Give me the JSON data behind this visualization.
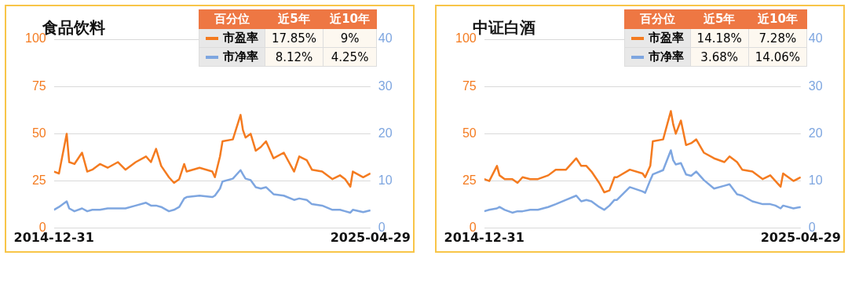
{
  "chart_data": [
    {
      "type": "line",
      "title": "食品饮料",
      "x": [
        "2014-12-31",
        "2015-03",
        "2015-06",
        "2015-07",
        "2015-09",
        "2015-12",
        "2016-02",
        "2016-04",
        "2016-07",
        "2016-10",
        "2017-02",
        "2017-05",
        "2017-09",
        "2018-01",
        "2018-03",
        "2018-05",
        "2018-07",
        "2018-10",
        "2018-12",
        "2019-02",
        "2019-04",
        "2019-05",
        "2019-10",
        "2020-03",
        "2020-04",
        "2020-06",
        "2020-07",
        "2020-11",
        "2021-02",
        "2021-03",
        "2021-04",
        "2021-06",
        "2021-08",
        "2021-10",
        "2021-12",
        "2022-03",
        "2022-07",
        "2022-11",
        "2023-01",
        "2023-04",
        "2023-06",
        "2023-10",
        "2024-02",
        "2024-05",
        "2024-07",
        "2024-09",
        "2024-10",
        "2025-02",
        "2025-04-29"
      ],
      "series": [
        {
          "name": "市盈率",
          "color": "#f47b20",
          "values": [
            30,
            29,
            50,
            35,
            34,
            40,
            30,
            31,
            34,
            32,
            35,
            31,
            35,
            38,
            35,
            42,
            33,
            27,
            24,
            26,
            34,
            30,
            32,
            30,
            27,
            38,
            46,
            47,
            60,
            52,
            48,
            50,
            41,
            43,
            46,
            37,
            40,
            30,
            38,
            36,
            31,
            30,
            26,
            28,
            26,
            22,
            30,
            27,
            29
          ]
        },
        {
          "name": "市净率",
          "color": "#7ea6e0",
          "axis": "y2",
          "values": [
            3.9,
            4.5,
            5.7,
            4.2,
            3.6,
            4.2,
            3.6,
            3.9,
            3.9,
            4.2,
            4.2,
            4.2,
            4.8,
            5.4,
            4.8,
            4.8,
            4.5,
            3.6,
            3.9,
            4.5,
            6.3,
            6.6,
            6.9,
            6.6,
            6.9,
            8.4,
            9.9,
            10.5,
            12.3,
            11.4,
            10.5,
            10.2,
            8.7,
            8.4,
            8.7,
            7.2,
            6.9,
            6.0,
            6.3,
            6.0,
            5.1,
            4.8,
            3.9,
            3.9,
            3.6,
            3.3,
            3.9,
            3.4,
            3.8
          ]
        }
      ],
      "xlim": [
        "2014-12-31",
        "2025-04-29"
      ],
      "xticks": [
        "2014-12-31",
        "2025-04-29"
      ],
      "ylim": [
        0,
        100
      ],
      "yticks": [
        0,
        25,
        50,
        75,
        100
      ],
      "y2lim": [
        0,
        40
      ],
      "y2ticks": [
        0,
        10,
        20,
        30,
        40
      ],
      "grid": "y",
      "legend": "top right",
      "annotations": [
        "百分位",
        "近5年",
        "近10年",
        "17.85%",
        "9%",
        "8.12%",
        "4.25%"
      ]
    },
    {
      "type": "line",
      "title": "中证白酒",
      "x": [
        "2014-12-31",
        "2015-03",
        "2015-06",
        "2015-07",
        "2015-09",
        "2015-12",
        "2016-02",
        "2016-04",
        "2016-07",
        "2016-10",
        "2017-02",
        "2017-05",
        "2017-09",
        "2018-01",
        "2018-03",
        "2018-05",
        "2018-07",
        "2018-10",
        "2018-12",
        "2019-02",
        "2019-04",
        "2019-05",
        "2019-10",
        "2020-03",
        "2020-04",
        "2020-06",
        "2020-07",
        "2020-11",
        "2021-02",
        "2021-03",
        "2021-04",
        "2021-06",
        "2021-08",
        "2021-10",
        "2021-12",
        "2022-03",
        "2022-07",
        "2022-11",
        "2023-01",
        "2023-04",
        "2023-06",
        "2023-10",
        "2024-02",
        "2024-05",
        "2024-07",
        "2024-09",
        "2024-10",
        "2025-02",
        "2025-04-29"
      ],
      "series": [
        {
          "name": "市盈率",
          "color": "#f47b20",
          "values": [
            26,
            25,
            33,
            28,
            26,
            26,
            24,
            27,
            26,
            26,
            28,
            31,
            31,
            37,
            33,
            33,
            30,
            24,
            19,
            20,
            27,
            27,
            31,
            29,
            27,
            33,
            46,
            47,
            62,
            55,
            50,
            57,
            44,
            45,
            47,
            40,
            37,
            35,
            38,
            35,
            31,
            30,
            26,
            28,
            25,
            22,
            29,
            25,
            27
          ]
        },
        {
          "name": "市净率",
          "color": "#7ea6e0",
          "axis": "y2",
          "values": [
            3.6,
            3.9,
            4.2,
            4.5,
            3.9,
            3.3,
            3.6,
            3.6,
            3.9,
            3.9,
            4.5,
            5.1,
            6.0,
            6.9,
            5.7,
            6.0,
            5.7,
            4.5,
            3.9,
            4.8,
            6.0,
            6.0,
            8.7,
            7.8,
            7.5,
            10.2,
            11.4,
            12.3,
            16.5,
            14.4,
            13.5,
            13.8,
            11.4,
            11.1,
            12.0,
            10.2,
            8.4,
            9.0,
            9.3,
            7.2,
            6.9,
            5.7,
            5.1,
            5.1,
            4.8,
            4.2,
            4.8,
            4.2,
            4.5
          ]
        }
      ],
      "xlim": [
        "2014-12-31",
        "2025-04-29"
      ],
      "xticks": [
        "2014-12-31",
        "2025-04-29"
      ],
      "ylim": [
        0,
        100
      ],
      "yticks": [
        0,
        25,
        50,
        75,
        100
      ],
      "y2lim": [
        0,
        40
      ],
      "y2ticks": [
        0,
        10,
        20,
        30,
        40
      ],
      "grid": "y",
      "legend": "top right",
      "annotations": [
        "百分位",
        "近5年",
        "近10年",
        "14.18%",
        "7.28%",
        "3.68%",
        "14.06%"
      ]
    }
  ]
}
